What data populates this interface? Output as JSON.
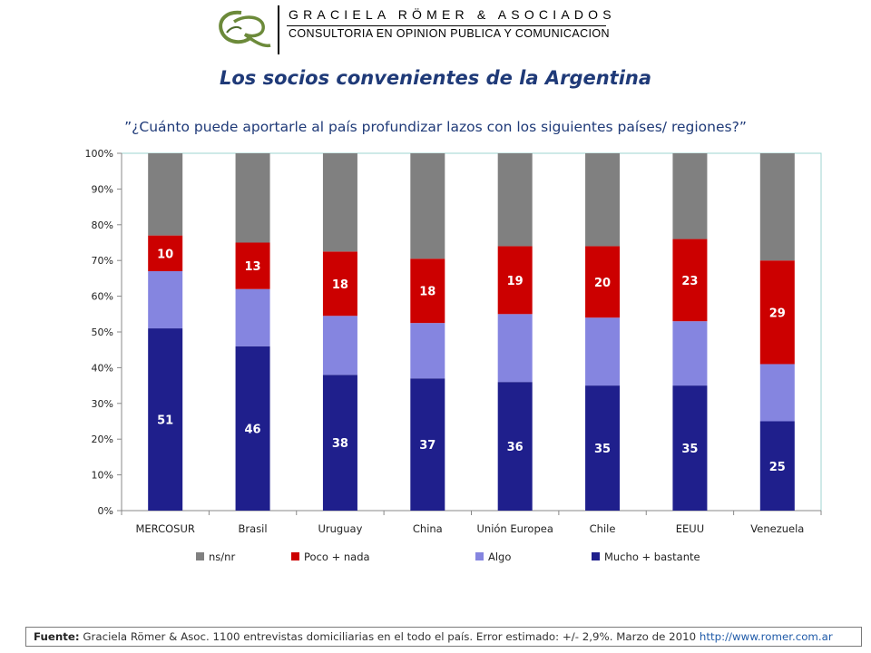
{
  "header": {
    "firm_name": "GRACIELA RÖMER & ASOCIADOS",
    "firm_tagline": "CONSULTORIA EN OPINION PUBLICA Y COMUNICACION"
  },
  "title": "Los socios convenientes de la Argentina",
  "question": "”¿Cuánto puede aportarle al país profundizar lazos con los siguientes países/ regiones?”",
  "footer": {
    "label": "Fuente:",
    "text": " Graciela Römer & Asoc. 1100 entrevistas domiciliarias en el todo el país. Error estimado: +/- 2,9%. Marzo de 2010 ",
    "link": "http://www.romer.com.ar"
  },
  "colors": {
    "ns_nr": "#808080",
    "poco_nada": "#cc0000",
    "algo": "#8585e0",
    "mucho_bastante": "#1f1f8c",
    "title": "#1f3a78",
    "plot_border": "#9fd4d0",
    "logo_green": "#6c8a3a"
  },
  "chart_data": {
    "type": "bar",
    "stacked": true,
    "percent_stacked": true,
    "categories": [
      "MERCOSUR",
      "Brasil",
      "Uruguay",
      "China",
      "Unión Europea",
      "Chile",
      "EEUU",
      "Venezuela"
    ],
    "y_ticks": [
      "0%",
      "10%",
      "20%",
      "30%",
      "40%",
      "50%",
      "60%",
      "70%",
      "80%",
      "90%",
      "100%"
    ],
    "ylim": [
      0,
      100
    ],
    "legend_position": "bottom",
    "series": [
      {
        "name": "Mucho + bastante",
        "color": "#1f1f8c",
        "values": [
          51,
          46,
          38,
          37,
          36,
          35,
          35,
          25
        ],
        "labels": [
          "51",
          "46",
          "38",
          "37",
          "36",
          "35",
          "35",
          "25"
        ]
      },
      {
        "name": "Algo",
        "color": "#8585e0",
        "values": [
          16,
          16,
          16.5,
          15.5,
          19,
          19,
          18,
          16
        ],
        "labels": []
      },
      {
        "name": "Poco + nada",
        "color": "#cc0000",
        "values": [
          10,
          13,
          18,
          18,
          19,
          20,
          23,
          29
        ],
        "labels": [
          "10",
          "13",
          "18",
          "18",
          "19",
          "20",
          "23",
          "29"
        ]
      },
      {
        "name": "ns/nr",
        "color": "#808080",
        "values": [
          23,
          25,
          27.5,
          29.5,
          26,
          26,
          24,
          30
        ],
        "labels": []
      }
    ],
    "legend_order": [
      "ns/nr",
      "Poco + nada",
      "Algo",
      "Mucho + bastante"
    ]
  }
}
